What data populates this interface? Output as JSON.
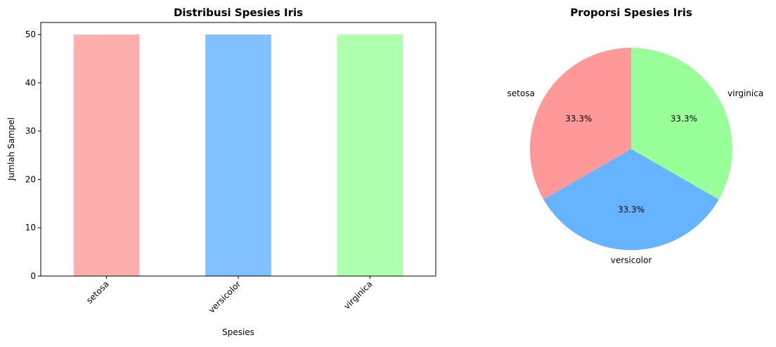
{
  "chart_data": [
    {
      "type": "bar",
      "title": "Distribusi Spesies Iris",
      "xlabel": "Spesies",
      "ylabel": "Jumlah Sampel",
      "categories": [
        "setosa",
        "versicolor",
        "virginica"
      ],
      "values": [
        50,
        50,
        50
      ],
      "colors": [
        "#ffaeae",
        "#82c1ff",
        "#aeffae"
      ],
      "ylim": [
        0,
        52.5
      ],
      "yticks": [
        0,
        10,
        20,
        30,
        40,
        50
      ],
      "ytick_labels": [
        "0",
        "10",
        "20",
        "30",
        "40",
        "50"
      ],
      "xtick_rotation": 45,
      "grid": false
    },
    {
      "type": "pie",
      "title": "Proporsi Spesies Iris",
      "labels": [
        "setosa",
        "versicolor",
        "virginica"
      ],
      "values": [
        50,
        50,
        50
      ],
      "percent_labels": [
        "33.3%",
        "33.3%",
        "33.3%"
      ],
      "colors": [
        "#ff9999",
        "#66b3ff",
        "#99ff99"
      ],
      "start_angle": 90,
      "direction": "counterclockwise"
    }
  ]
}
